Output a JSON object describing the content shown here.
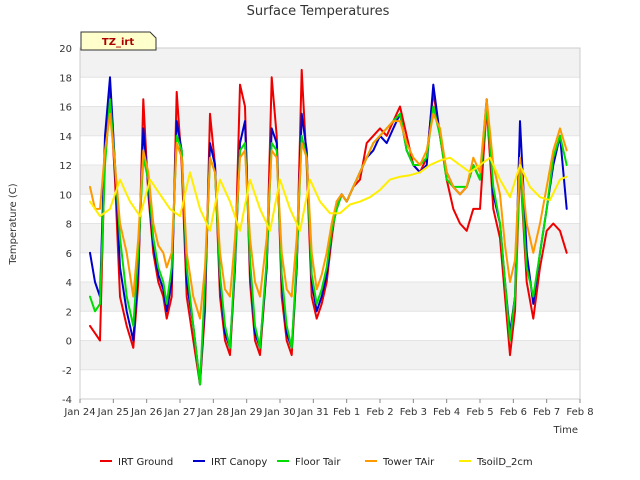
{
  "chart_data": {
    "type": "line",
    "title": "Surface Temperatures",
    "xlabel": "Time",
    "ylabel": "Temperature (C)",
    "badge": "TZ_irt",
    "ylim": [
      -4,
      20
    ],
    "yticks": [
      -4,
      -2,
      0,
      2,
      4,
      6,
      8,
      10,
      12,
      14,
      16,
      18,
      20
    ],
    "xlim": [
      0,
      15
    ],
    "xticks": [
      {
        "x": 0,
        "label": "Jan 24"
      },
      {
        "x": 1,
        "label": "Jan 25"
      },
      {
        "x": 2,
        "label": "Jan 26"
      },
      {
        "x": 3,
        "label": "Jan 27"
      },
      {
        "x": 4,
        "label": "Jan 28"
      },
      {
        "x": 5,
        "label": "Jan 29"
      },
      {
        "x": 6,
        "label": "Jan 30"
      },
      {
        "x": 7,
        "label": "Jan 31"
      },
      {
        "x": 8,
        "label": "Feb 1"
      },
      {
        "x": 9,
        "label": "Feb 2"
      },
      {
        "x": 10,
        "label": "Feb 3"
      },
      {
        "x": 11,
        "label": "Feb 4"
      },
      {
        "x": 12,
        "label": "Feb 5"
      },
      {
        "x": 13,
        "label": "Feb 6"
      },
      {
        "x": 14,
        "label": "Feb 7"
      },
      {
        "x": 15,
        "label": "Feb 8"
      }
    ],
    "grid": "horizontal bands",
    "legend_position": "bottom",
    "series": [
      {
        "name": "IRT Ground",
        "color": "#ee0000",
        "x": [
          0.3,
          0.45,
          0.6,
          0.75,
          0.9,
          1.05,
          1.2,
          1.4,
          1.6,
          1.75,
          1.9,
          2.05,
          2.2,
          2.35,
          2.5,
          2.6,
          2.75,
          2.9,
          3.05,
          3.2,
          3.4,
          3.6,
          3.75,
          3.9,
          4.05,
          4.2,
          4.35,
          4.5,
          4.65,
          4.8,
          4.95,
          5.1,
          5.25,
          5.4,
          5.6,
          5.75,
          5.9,
          6.05,
          6.2,
          6.35,
          6.5,
          6.65,
          6.8,
          6.95,
          7.1,
          7.25,
          7.4,
          7.55,
          7.7,
          7.85,
          8.0,
          8.2,
          8.4,
          8.6,
          8.8,
          9.0,
          9.2,
          9.4,
          9.6,
          9.8,
          10.0,
          10.2,
          10.4,
          10.6,
          10.8,
          11.0,
          11.2,
          11.4,
          11.6,
          11.8,
          12.0,
          12.2,
          12.4,
          12.6,
          12.75,
          12.9,
          13.05,
          13.2,
          13.4,
          13.6,
          13.8,
          14.0,
          14.2,
          14.4,
          14.6
        ],
        "y": [
          1.0,
          0.5,
          0.0,
          13.0,
          17.0,
          11.0,
          3.0,
          1.0,
          -0.5,
          4.0,
          16.5,
          10.0,
          6.0,
          4.0,
          3.0,
          1.5,
          3.0,
          17.0,
          12.0,
          3.0,
          0.0,
          -3.0,
          2.0,
          15.5,
          12.0,
          3.0,
          0.0,
          -1.0,
          5.0,
          17.5,
          16.0,
          4.0,
          0.0,
          -1.0,
          5.0,
          18.0,
          14.0,
          3.0,
          0.0,
          -1.0,
          5.0,
          18.5,
          12.0,
          3.0,
          1.5,
          2.5,
          4.0,
          7.0,
          9.5,
          10.0,
          9.5,
          10.5,
          11.0,
          13.5,
          14.0,
          14.5,
          14.0,
          15.0,
          16.0,
          14.0,
          12.0,
          11.5,
          12.5,
          17.0,
          14.0,
          11.0,
          9.0,
          8.0,
          7.5,
          9.0,
          9.0,
          16.0,
          9.0,
          7.0,
          3.0,
          -1.0,
          2.0,
          12.0,
          4.0,
          1.5,
          5.0,
          7.5,
          8.0,
          7.5,
          6.0
        ]
      },
      {
        "name": "IRT Canopy",
        "color": "#0000cc",
        "x": [
          0.3,
          0.45,
          0.6,
          0.75,
          0.9,
          1.05,
          1.2,
          1.4,
          1.6,
          1.75,
          1.9,
          2.05,
          2.2,
          2.35,
          2.5,
          2.6,
          2.75,
          2.9,
          3.05,
          3.2,
          3.4,
          3.6,
          3.75,
          3.9,
          4.05,
          4.2,
          4.35,
          4.5,
          4.65,
          4.8,
          4.95,
          5.1,
          5.25,
          5.4,
          5.6,
          5.75,
          5.9,
          6.05,
          6.2,
          6.35,
          6.5,
          6.65,
          6.8,
          6.95,
          7.1,
          7.25,
          7.4,
          7.55,
          7.7,
          7.85,
          8.0,
          8.2,
          8.4,
          8.6,
          8.8,
          9.0,
          9.2,
          9.4,
          9.6,
          9.8,
          10.0,
          10.2,
          10.4,
          10.6,
          10.8,
          11.0,
          11.2,
          11.4,
          11.6,
          11.8,
          12.0,
          12.2,
          12.4,
          12.6,
          12.75,
          12.9,
          13.05,
          13.2,
          13.4,
          13.6,
          13.8,
          14.0,
          14.2,
          14.4,
          14.6
        ],
        "y": [
          6.0,
          4.0,
          3.0,
          14.0,
          18.0,
          12.0,
          5.0,
          2.0,
          0.0,
          5.0,
          14.5,
          10.5,
          6.5,
          4.5,
          3.5,
          2.0,
          4.0,
          15.0,
          13.0,
          4.0,
          1.0,
          -3.0,
          3.0,
          13.5,
          12.0,
          4.0,
          0.5,
          -0.5,
          5.0,
          13.5,
          15.0,
          5.0,
          0.5,
          -0.5,
          5.0,
          14.5,
          13.5,
          4.0,
          0.5,
          -0.5,
          5.0,
          15.5,
          13.0,
          4.0,
          2.0,
          3.0,
          4.5,
          7.5,
          9.0,
          10.0,
          9.5,
          10.5,
          11.5,
          12.5,
          13.0,
          14.0,
          13.5,
          14.5,
          15.5,
          13.0,
          12.0,
          11.5,
          12.0,
          17.5,
          14.0,
          11.5,
          10.5,
          10.0,
          10.5,
          12.0,
          11.0,
          16.5,
          10.0,
          8.0,
          4.0,
          0.5,
          3.0,
          15.0,
          6.0,
          2.5,
          6.0,
          9.0,
          12.0,
          14.0,
          9.0
        ]
      },
      {
        "name": "Floor Tair",
        "color": "#00dd00",
        "x": [
          0.3,
          0.45,
          0.6,
          0.75,
          0.9,
          1.05,
          1.2,
          1.4,
          1.6,
          1.75,
          1.9,
          2.05,
          2.2,
          2.35,
          2.5,
          2.6,
          2.75,
          2.9,
          3.05,
          3.2,
          3.4,
          3.6,
          3.75,
          3.9,
          4.05,
          4.2,
          4.35,
          4.5,
          4.65,
          4.8,
          4.95,
          5.1,
          5.25,
          5.4,
          5.6,
          5.75,
          5.9,
          6.05,
          6.2,
          6.35,
          6.5,
          6.65,
          6.8,
          6.95,
          7.1,
          7.25,
          7.4,
          7.55,
          7.7,
          7.85,
          8.0,
          8.2,
          8.4,
          8.6,
          8.8,
          9.0,
          9.2,
          9.4,
          9.6,
          9.8,
          10.0,
          10.2,
          10.4,
          10.6,
          10.8,
          11.0,
          11.2,
          11.4,
          11.6,
          11.8,
          12.0,
          12.2,
          12.4,
          12.6,
          12.75,
          12.9,
          13.05,
          13.2,
          13.4,
          13.6,
          13.8,
          14.0,
          14.2,
          14.4,
          14.6
        ],
        "y": [
          3.0,
          2.0,
          2.5,
          12.0,
          16.5,
          12.0,
          7.0,
          3.0,
          1.0,
          6.0,
          12.5,
          11.0,
          7.0,
          5.0,
          4.0,
          2.5,
          5.0,
          14.0,
          13.0,
          5.0,
          1.0,
          -3.0,
          4.0,
          12.5,
          11.5,
          4.5,
          1.0,
          -0.5,
          5.5,
          13.0,
          13.5,
          5.5,
          1.0,
          -0.5,
          5.5,
          13.5,
          13.0,
          4.5,
          1.0,
          -0.5,
          5.5,
          14.0,
          12.5,
          4.5,
          2.5,
          3.5,
          5.0,
          7.5,
          9.0,
          10.0,
          9.5,
          10.5,
          11.5,
          12.5,
          13.5,
          14.0,
          14.5,
          15.0,
          15.5,
          13.0,
          12.0,
          12.0,
          12.5,
          16.0,
          14.0,
          11.0,
          10.5,
          10.5,
          10.5,
          12.0,
          11.0,
          16.0,
          10.5,
          8.0,
          4.0,
          0.0,
          3.0,
          12.0,
          5.0,
          3.0,
          6.0,
          9.0,
          12.5,
          14.0,
          12.0
        ]
      },
      {
        "name": "Tower TAir",
        "color": "#ff9900",
        "x": [
          0.3,
          0.45,
          0.6,
          0.75,
          0.9,
          1.05,
          1.2,
          1.4,
          1.6,
          1.75,
          1.9,
          2.05,
          2.2,
          2.35,
          2.5,
          2.6,
          2.75,
          2.9,
          3.05,
          3.2,
          3.4,
          3.6,
          3.75,
          3.9,
          4.05,
          4.2,
          4.35,
          4.5,
          4.65,
          4.8,
          4.95,
          5.1,
          5.25,
          5.4,
          5.6,
          5.75,
          5.9,
          6.05,
          6.2,
          6.35,
          6.5,
          6.65,
          6.8,
          6.95,
          7.1,
          7.25,
          7.4,
          7.55,
          7.7,
          7.85,
          8.0,
          8.2,
          8.4,
          8.6,
          8.8,
          9.0,
          9.2,
          9.4,
          9.6,
          9.8,
          10.0,
          10.2,
          10.4,
          10.6,
          10.8,
          11.0,
          11.2,
          11.4,
          11.6,
          11.8,
          12.0,
          12.2,
          12.4,
          12.6,
          12.75,
          12.9,
          13.05,
          13.2,
          13.4,
          13.6,
          13.8,
          14.0,
          14.2,
          14.4,
          14.6
        ],
        "y": [
          10.5,
          9.0,
          9.0,
          13.0,
          15.5,
          12.0,
          8.0,
          6.0,
          3.0,
          7.0,
          13.0,
          11.5,
          8.0,
          6.5,
          6.0,
          5.0,
          6.0,
          13.5,
          12.5,
          6.0,
          3.0,
          1.5,
          5.0,
          12.5,
          11.5,
          6.0,
          3.5,
          3.0,
          7.0,
          12.5,
          13.0,
          7.0,
          4.0,
          3.0,
          7.0,
          13.0,
          12.5,
          6.0,
          3.5,
          3.0,
          7.0,
          13.5,
          12.5,
          6.0,
          3.5,
          4.5,
          6.0,
          8.0,
          9.5,
          10.0,
          9.5,
          10.5,
          11.5,
          12.5,
          13.5,
          14.0,
          14.5,
          15.0,
          15.0,
          13.5,
          12.5,
          12.0,
          13.0,
          15.5,
          14.5,
          11.5,
          10.5,
          10.0,
          10.5,
          12.5,
          11.5,
          16.5,
          12.0,
          10.0,
          6.5,
          4.0,
          5.5,
          12.5,
          8.0,
          6.0,
          8.0,
          10.5,
          13.0,
          14.5,
          13.0
        ]
      },
      {
        "name": "TsoilD_2cm",
        "color": "#ffee00",
        "x": [
          0.3,
          0.6,
          0.9,
          1.2,
          1.5,
          1.8,
          2.1,
          2.4,
          2.7,
          3.0,
          3.3,
          3.6,
          3.9,
          4.2,
          4.5,
          4.8,
          5.1,
          5.4,
          5.7,
          6.0,
          6.3,
          6.6,
          6.9,
          7.2,
          7.5,
          7.8,
          8.1,
          8.4,
          8.7,
          9.0,
          9.3,
          9.6,
          9.9,
          10.2,
          10.5,
          10.8,
          11.1,
          11.4,
          11.7,
          12.0,
          12.3,
          12.6,
          12.9,
          13.2,
          13.5,
          13.8,
          14.1,
          14.4,
          14.6
        ],
        "y": [
          9.5,
          8.5,
          9.0,
          11.0,
          9.5,
          8.5,
          11.0,
          10.0,
          9.0,
          8.5,
          11.5,
          9.0,
          7.5,
          11.0,
          9.5,
          7.5,
          11.0,
          9.0,
          7.5,
          11.0,
          9.0,
          7.5,
          11.0,
          9.5,
          8.7,
          8.7,
          9.3,
          9.5,
          9.8,
          10.3,
          11.0,
          11.2,
          11.3,
          11.5,
          12.0,
          12.3,
          12.5,
          12.0,
          11.5,
          12.0,
          12.5,
          11.0,
          9.8,
          12.0,
          10.5,
          9.8,
          9.6,
          11.0,
          11.2
        ]
      }
    ]
  }
}
